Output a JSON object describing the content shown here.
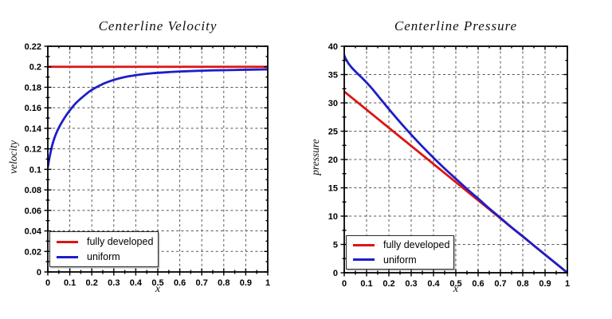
{
  "figure": {
    "background": "#ffffff"
  },
  "colors": {
    "red": "#dd1414",
    "blue": "#1e1ec8",
    "grid": "#555555",
    "frame": "#000000",
    "tick_text": "#000000"
  },
  "legend": {
    "items": [
      {
        "label": "fully developed",
        "color": "red"
      },
      {
        "label": "uniform",
        "color": "blue"
      }
    ],
    "position": "bottom-left"
  },
  "chart_data": [
    {
      "type": "line",
      "title": "Centerline Velocity",
      "xlabel": "x",
      "ylabel": "velocity",
      "xlim": [
        0,
        1
      ],
      "ylim": [
        0,
        0.22
      ],
      "grid": "dashed",
      "legend_position": "bottom-left",
      "x_ticks": {
        "values": [
          0,
          0.1,
          0.2,
          0.3,
          0.4,
          0.5,
          0.6,
          0.7,
          0.8,
          0.9,
          1
        ],
        "labels": [
          "0",
          "0.1",
          "0.2",
          "0.3",
          "0.4",
          "0.5",
          "0.6",
          "0.7",
          "0.8",
          "0.9",
          "1"
        ],
        "minor_step": 0.05
      },
      "y_ticks": {
        "values": [
          0,
          0.02,
          0.04,
          0.06,
          0.08,
          0.1,
          0.12,
          0.14,
          0.16,
          0.18,
          0.2,
          0.22
        ],
        "labels": [
          "0",
          "0.02",
          "0.04",
          "0.06",
          "0.08",
          "0.1",
          "0.12",
          "0.14",
          "0.16",
          "0.18",
          "0.2",
          "0.22"
        ],
        "minor_step": 0.01
      },
      "series": [
        {
          "name": "fully developed",
          "color": "red",
          "points": [
            [
              0,
              0.2
            ],
            [
              1,
              0.2
            ]
          ]
        },
        {
          "name": "uniform",
          "color": "blue",
          "points": [
            [
              0,
              0.102
            ],
            [
              0.005,
              0.1085
            ],
            [
              0.01,
              0.114
            ],
            [
              0.02,
              0.1235
            ],
            [
              0.03,
              0.1305
            ],
            [
              0.04,
              0.136
            ],
            [
              0.05,
              0.1405
            ],
            [
              0.06,
              0.1445
            ],
            [
              0.08,
              0.1515
            ],
            [
              0.1,
              0.1575
            ],
            [
              0.125,
              0.164
            ],
            [
              0.15,
              0.169
            ],
            [
              0.175,
              0.1735
            ],
            [
              0.2,
              0.1775
            ],
            [
              0.25,
              0.1832
            ],
            [
              0.3,
              0.1872
            ],
            [
              0.35,
              0.19
            ],
            [
              0.4,
              0.1918
            ],
            [
              0.45,
              0.1932
            ],
            [
              0.5,
              0.1941
            ],
            [
              0.55,
              0.1948
            ],
            [
              0.6,
              0.1954
            ],
            [
              0.65,
              0.1958
            ],
            [
              0.7,
              0.1962
            ],
            [
              0.75,
              0.1965
            ],
            [
              0.8,
              0.1967
            ],
            [
              0.85,
              0.1969
            ],
            [
              0.9,
              0.1971
            ],
            [
              0.95,
              0.1973
            ],
            [
              1,
              0.1975
            ]
          ]
        }
      ]
    },
    {
      "type": "line",
      "title": "Centerline Pressure",
      "xlabel": "x",
      "ylabel": "pressure",
      "xlim": [
        0,
        1
      ],
      "ylim": [
        0,
        40
      ],
      "grid": "dashed",
      "legend_position": "bottom-left",
      "x_ticks": {
        "values": [
          0,
          0.1,
          0.2,
          0.3,
          0.4,
          0.5,
          0.6,
          0.7,
          0.8,
          0.9,
          1
        ],
        "labels": [
          "0",
          "0.1",
          "0.2",
          "0.3",
          "0.4",
          "0.5",
          "0.6",
          "0.7",
          "0.8",
          "0.9",
          "1"
        ],
        "minor_step": 0.05
      },
      "y_ticks": {
        "values": [
          0,
          5,
          10,
          15,
          20,
          25,
          30,
          35,
          40
        ],
        "labels": [
          "0",
          "5",
          "10",
          "15",
          "20",
          "25",
          "30",
          "35",
          "40"
        ],
        "minor_step": 2.5
      },
      "series": [
        {
          "name": "fully developed",
          "color": "red",
          "points": [
            [
              0,
              32
            ],
            [
              1,
              0
            ]
          ]
        },
        {
          "name": "uniform",
          "color": "blue",
          "points": [
            [
              0,
              38.4
            ],
            [
              0.005,
              37.9
            ],
            [
              0.01,
              37.55
            ],
            [
              0.02,
              36.9
            ],
            [
              0.03,
              36.4
            ],
            [
              0.04,
              35.95
            ],
            [
              0.05,
              35.55
            ],
            [
              0.06,
              35.15
            ],
            [
              0.08,
              34.4
            ],
            [
              0.1,
              33.6
            ],
            [
              0.125,
              32.5
            ],
            [
              0.15,
              31.3
            ],
            [
              0.175,
              30.1
            ],
            [
              0.2,
              28.9
            ],
            [
              0.25,
              26.6
            ],
            [
              0.3,
              24.4
            ],
            [
              0.35,
              22.3
            ],
            [
              0.4,
              20.3
            ],
            [
              0.45,
              18.4
            ],
            [
              0.5,
              16.6
            ],
            [
              0.55,
              14.8
            ],
            [
              0.6,
              13.1
            ],
            [
              0.65,
              11.35
            ],
            [
              0.7,
              9.7
            ],
            [
              0.75,
              8.0
            ],
            [
              0.8,
              6.45
            ],
            [
              0.85,
              4.8
            ],
            [
              0.9,
              3.2
            ],
            [
              0.95,
              1.6
            ],
            [
              1,
              0
            ]
          ]
        }
      ]
    }
  ]
}
